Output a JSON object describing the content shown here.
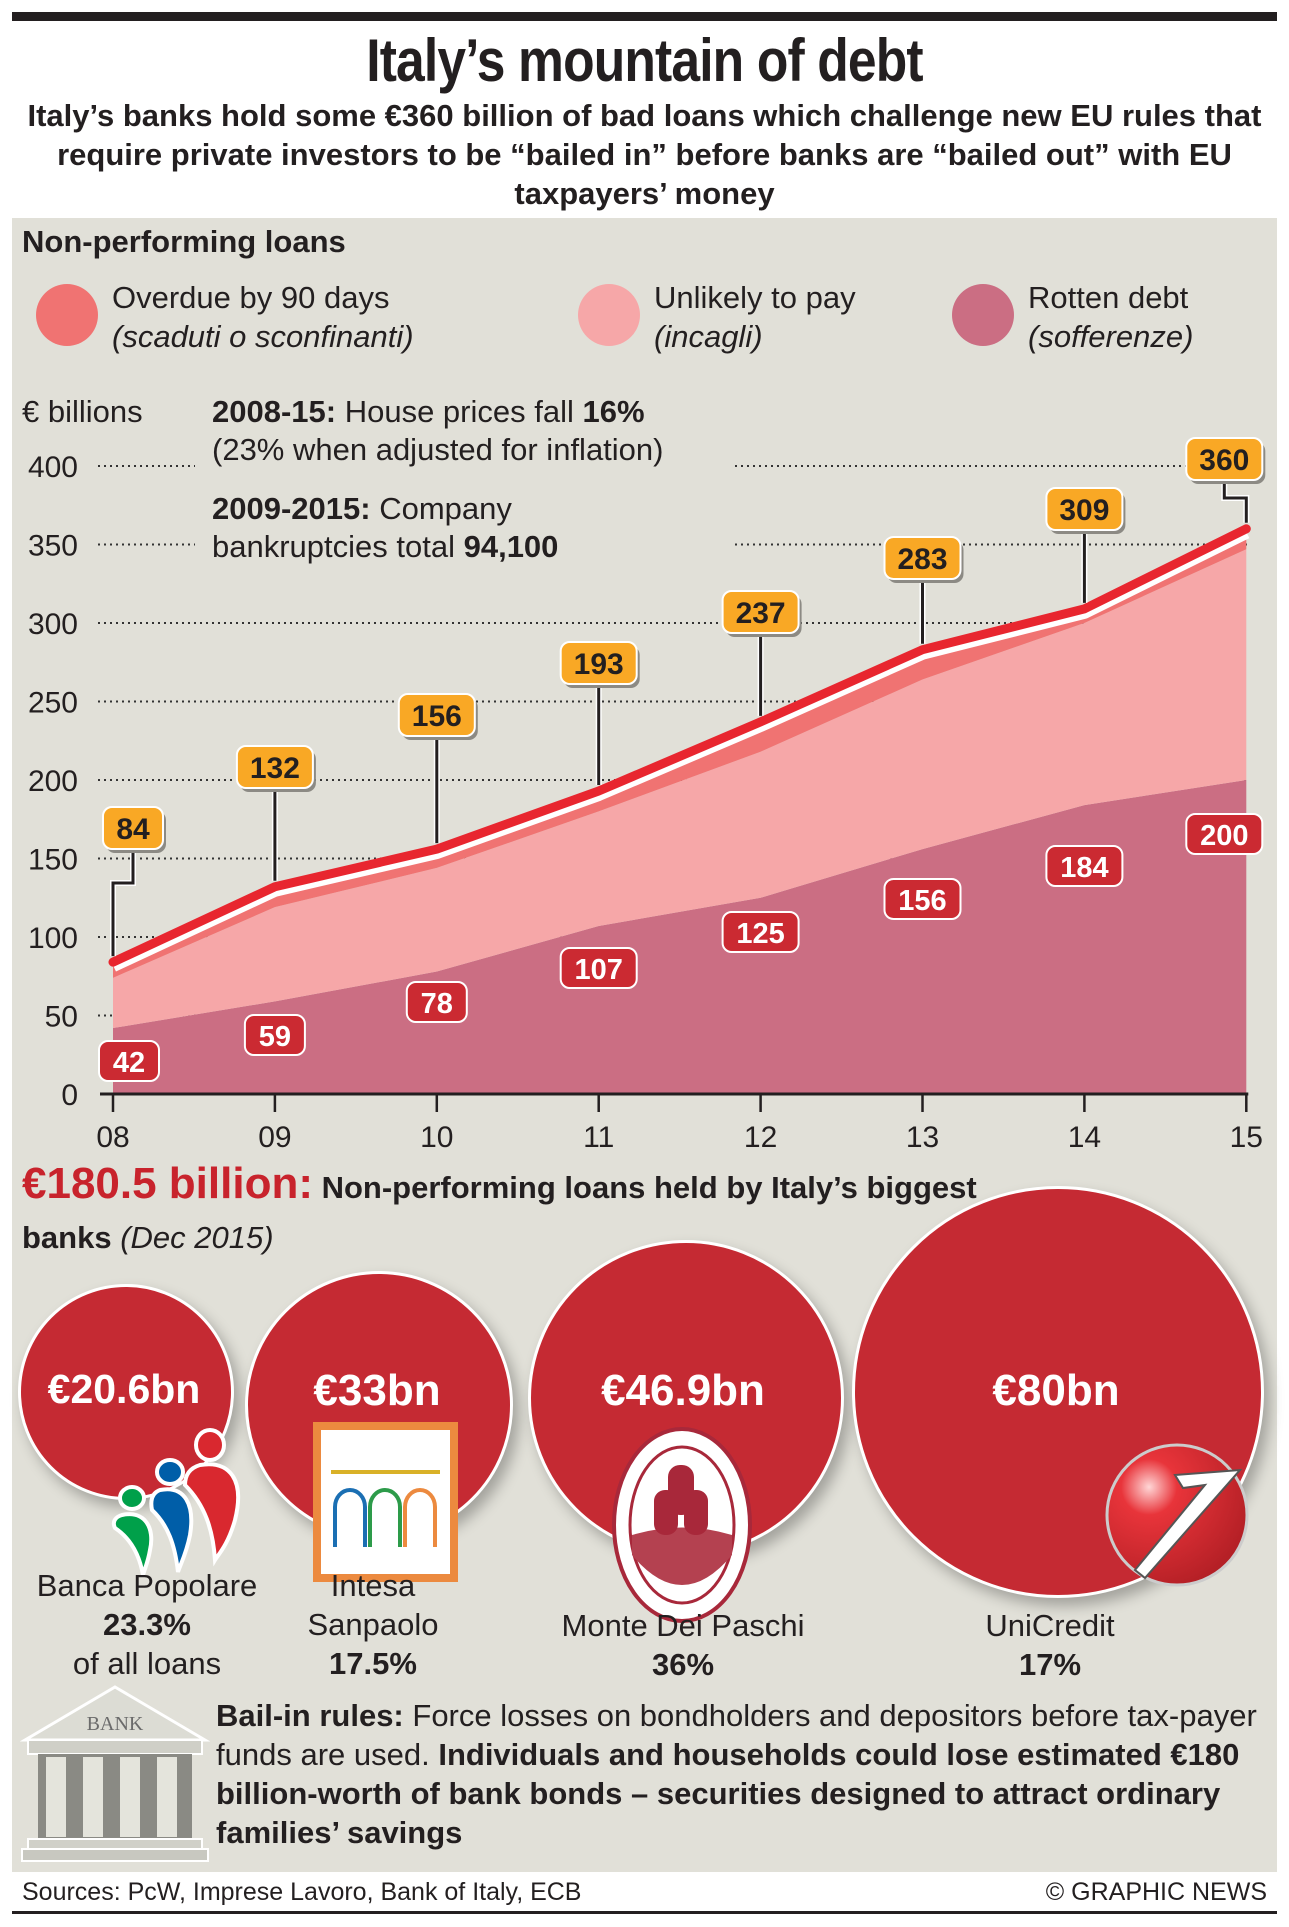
{
  "header": {
    "title": "Italy’s mountain of debt",
    "subtitle": "Italy’s banks hold some €360 billion of bad loans which challenge new EU rules that require private investors to be “bailed in” before banks are “bailed out” with EU taxpayers’ money"
  },
  "legend": {
    "heading": "Non-performing loans",
    "items": [
      {
        "label": "Overdue by 90 days",
        "sublabel": "(scaduti o sconfinanti)",
        "color": "#f07372"
      },
      {
        "label": "Unlikely to pay",
        "sublabel": "(incagli)",
        "color": "#f6a7a8"
      },
      {
        "label": "Rotten debt",
        "sublabel": "(sofferenze)",
        "color": "#cb6e83"
      }
    ]
  },
  "annotations": {
    "house_prices": {
      "bold_lead": "2008-15:",
      "text": " House prices fall ",
      "bold_value": "16%",
      "line2": "(23% when adjusted for inflation)"
    },
    "bankruptcies": {
      "bold_lead": "2009-2015:",
      "text": " Company",
      "line2": "bankruptcies total ",
      "bold_value": "94,100"
    }
  },
  "chart_data": {
    "type": "area",
    "title": "Non-performing loans",
    "ylabel": "€ billions",
    "xlabel": "",
    "categories": [
      "08",
      "09",
      "10",
      "11",
      "12",
      "13",
      "14",
      "15"
    ],
    "ylim": [
      0,
      400
    ],
    "yticks": [
      0,
      50,
      100,
      150,
      200,
      250,
      300,
      350,
      400
    ],
    "grid": "dotted horizontal",
    "stacked": true,
    "total_labels": [
      84,
      132,
      156,
      193,
      237,
      283,
      309,
      360
    ],
    "rotten_labels": [
      42,
      59,
      78,
      107,
      125,
      156,
      184,
      200
    ],
    "series": [
      {
        "name": "Rotten debt",
        "values": [
          42,
          59,
          78,
          107,
          125,
          156,
          184,
          200
        ],
        "color": "#cb6e83"
      },
      {
        "name": "Unlikely to pay",
        "values": [
          32,
          60,
          66,
          73,
          93,
          108,
          116,
          147
        ],
        "color": "#f6a7a8"
      },
      {
        "name": "Overdue by 90 days",
        "values": [
          10,
          13,
          12,
          13,
          19,
          19,
          9,
          13
        ],
        "color": "#f07372"
      }
    ],
    "total_line_color": "#e8262f",
    "total_label_color": "#f9a825",
    "rotten_label_color": "#cb2a32"
  },
  "banks": {
    "total_value": "€180.5 billion:",
    "heading_text": " Non-performing loans held by Italy’s biggest banks ",
    "heading_date": "(Dec 2015)",
    "items": [
      {
        "value": "€20.6bn",
        "name": "Banca Popolare",
        "share": "23.3%",
        "note": "of all loans",
        "logo": "banca-popolare-logo"
      },
      {
        "value": "€33bn",
        "name_line1": "Intesa",
        "name_line2": "Sanpaolo",
        "share": "17.5%",
        "logo": "intesa-sanpaolo-logo"
      },
      {
        "value": "€46.9bn",
        "name": "Monte Dei Paschi",
        "share": "36%",
        "logo": "monte-dei-paschi-seal"
      },
      {
        "value": "€80bn",
        "name": "UniCredit",
        "share": "17%",
        "logo": "unicredit-logo"
      }
    ]
  },
  "bailin": {
    "lead": "Bail-in rules:",
    "text": " Force losses on bondholders and depositors before tax-payer funds are used. ",
    "bold_text": "Individuals and households could lose estimated €180 billion-worth of bank bonds – securities designed to attract ordinary families’ savings",
    "icon_label": "BANK"
  },
  "footer": {
    "sources": "Sources: PcW, Imprese Lavoro, Bank of Italy, ECB",
    "copyright": "© GRAPHIC NEWS"
  }
}
